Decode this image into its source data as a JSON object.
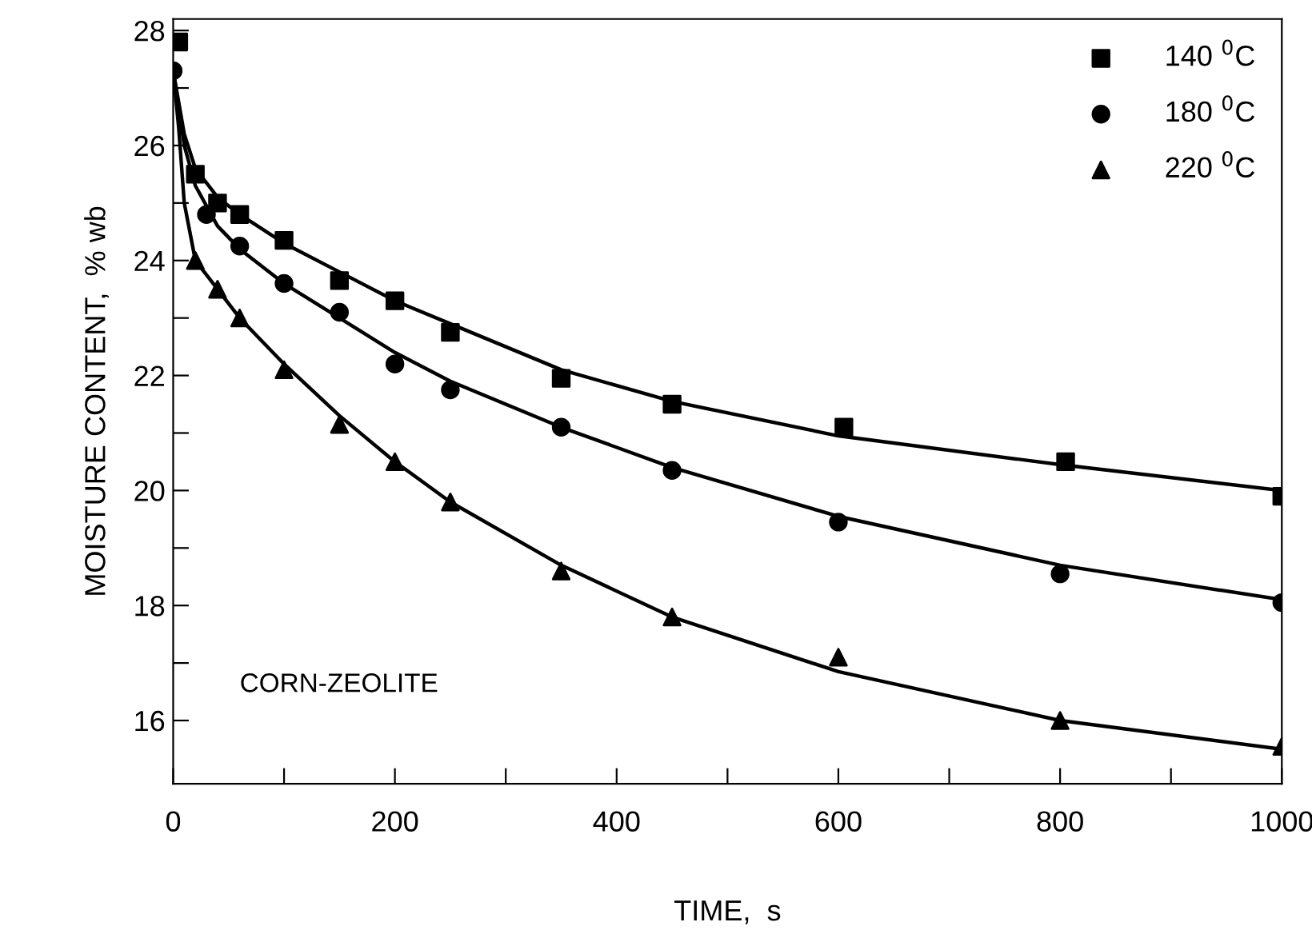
{
  "chart_data": {
    "type": "scatter",
    "xlabel": "TIME,  s",
    "ylabel": "MOISTURE CONTENT,  % wb",
    "annotations": [
      "CORN-ZEOLITE"
    ],
    "xlim": [
      0,
      1000
    ],
    "ylim": [
      14.9,
      28.2
    ],
    "xticks": [
      0,
      {
        "value": 100,
        "label": null
      },
      200,
      {
        "value": 300,
        "label": null
      },
      400,
      {
        "value": 500,
        "label": null
      },
      600,
      {
        "value": 700,
        "label": null
      },
      800,
      {
        "value": 900,
        "label": null
      },
      1000
    ],
    "yticks": [
      16,
      {
        "value": 17,
        "label": null
      },
      18,
      {
        "value": 19,
        "label": null
      },
      20,
      {
        "value": 21,
        "label": null
      },
      22,
      {
        "value": 23,
        "label": null
      },
      24,
      {
        "value": 25,
        "label": null
      },
      26,
      {
        "value": 27,
        "label": null
      },
      28
    ],
    "grid": false,
    "legend": "top right",
    "series": [
      {
        "name": "140 $^{0}$C",
        "color": "#000000",
        "marker": "square",
        "x": [
          5,
          20,
          40,
          60,
          100,
          150,
          200,
          250,
          350,
          450,
          605,
          805,
          1000
        ],
        "values": [
          27.8,
          25.5,
          25.0,
          24.8,
          24.35,
          23.65,
          23.3,
          22.75,
          21.95,
          21.5,
          21.1,
          20.5,
          19.9
        ]
      },
      {
        "name": "180 $^{0}$C",
        "color": "#000000",
        "marker": "circle",
        "x": [
          0,
          30,
          60,
          100,
          150,
          200,
          250,
          350,
          450,
          600,
          800,
          1000
        ],
        "values": [
          27.3,
          24.8,
          24.25,
          23.6,
          23.1,
          22.2,
          21.75,
          21.1,
          20.35,
          19.45,
          18.55,
          18.05
        ]
      },
      {
        "name": "220 $^{0}$C",
        "color": "#000000",
        "marker": "triangle",
        "x": [
          20,
          40,
          60,
          100,
          150,
          200,
          250,
          350,
          450,
          600,
          800,
          1000
        ],
        "values": [
          24.0,
          23.5,
          23.0,
          22.1,
          21.15,
          20.5,
          19.8,
          18.6,
          17.8,
          17.1,
          16.0,
          15.55
        ]
      },
      {
        "type": "line",
        "color": "#000000",
        "line_style": "solid",
        "x": [
          0,
          10,
          20,
          40,
          60,
          100,
          150,
          200,
          250,
          350,
          450,
          600,
          800,
          1000
        ],
        "values": [
          27.3,
          26.2,
          25.6,
          25.1,
          24.8,
          24.3,
          23.8,
          23.3,
          22.9,
          22.1,
          21.55,
          20.95,
          20.45,
          20.0
        ]
      },
      {
        "type": "line",
        "color": "#000000",
        "line_style": "solid",
        "x": [
          0,
          10,
          20,
          40,
          60,
          100,
          150,
          200,
          250,
          350,
          450,
          600,
          800,
          1000
        ],
        "values": [
          27.3,
          26.0,
          25.3,
          24.6,
          24.2,
          23.6,
          23.0,
          22.4,
          21.9,
          21.1,
          20.4,
          19.55,
          18.7,
          18.1
        ]
      },
      {
        "type": "line",
        "color": "#000000",
        "line_style": "solid",
        "x": [
          0,
          5,
          10,
          20,
          40,
          60,
          100,
          150,
          200,
          250,
          350,
          450,
          600,
          800,
          1000
        ],
        "values": [
          27.3,
          26.3,
          25.0,
          24.0,
          23.5,
          23.0,
          22.2,
          21.3,
          20.5,
          19.8,
          18.7,
          17.8,
          16.85,
          16.0,
          15.5
        ]
      }
    ]
  }
}
